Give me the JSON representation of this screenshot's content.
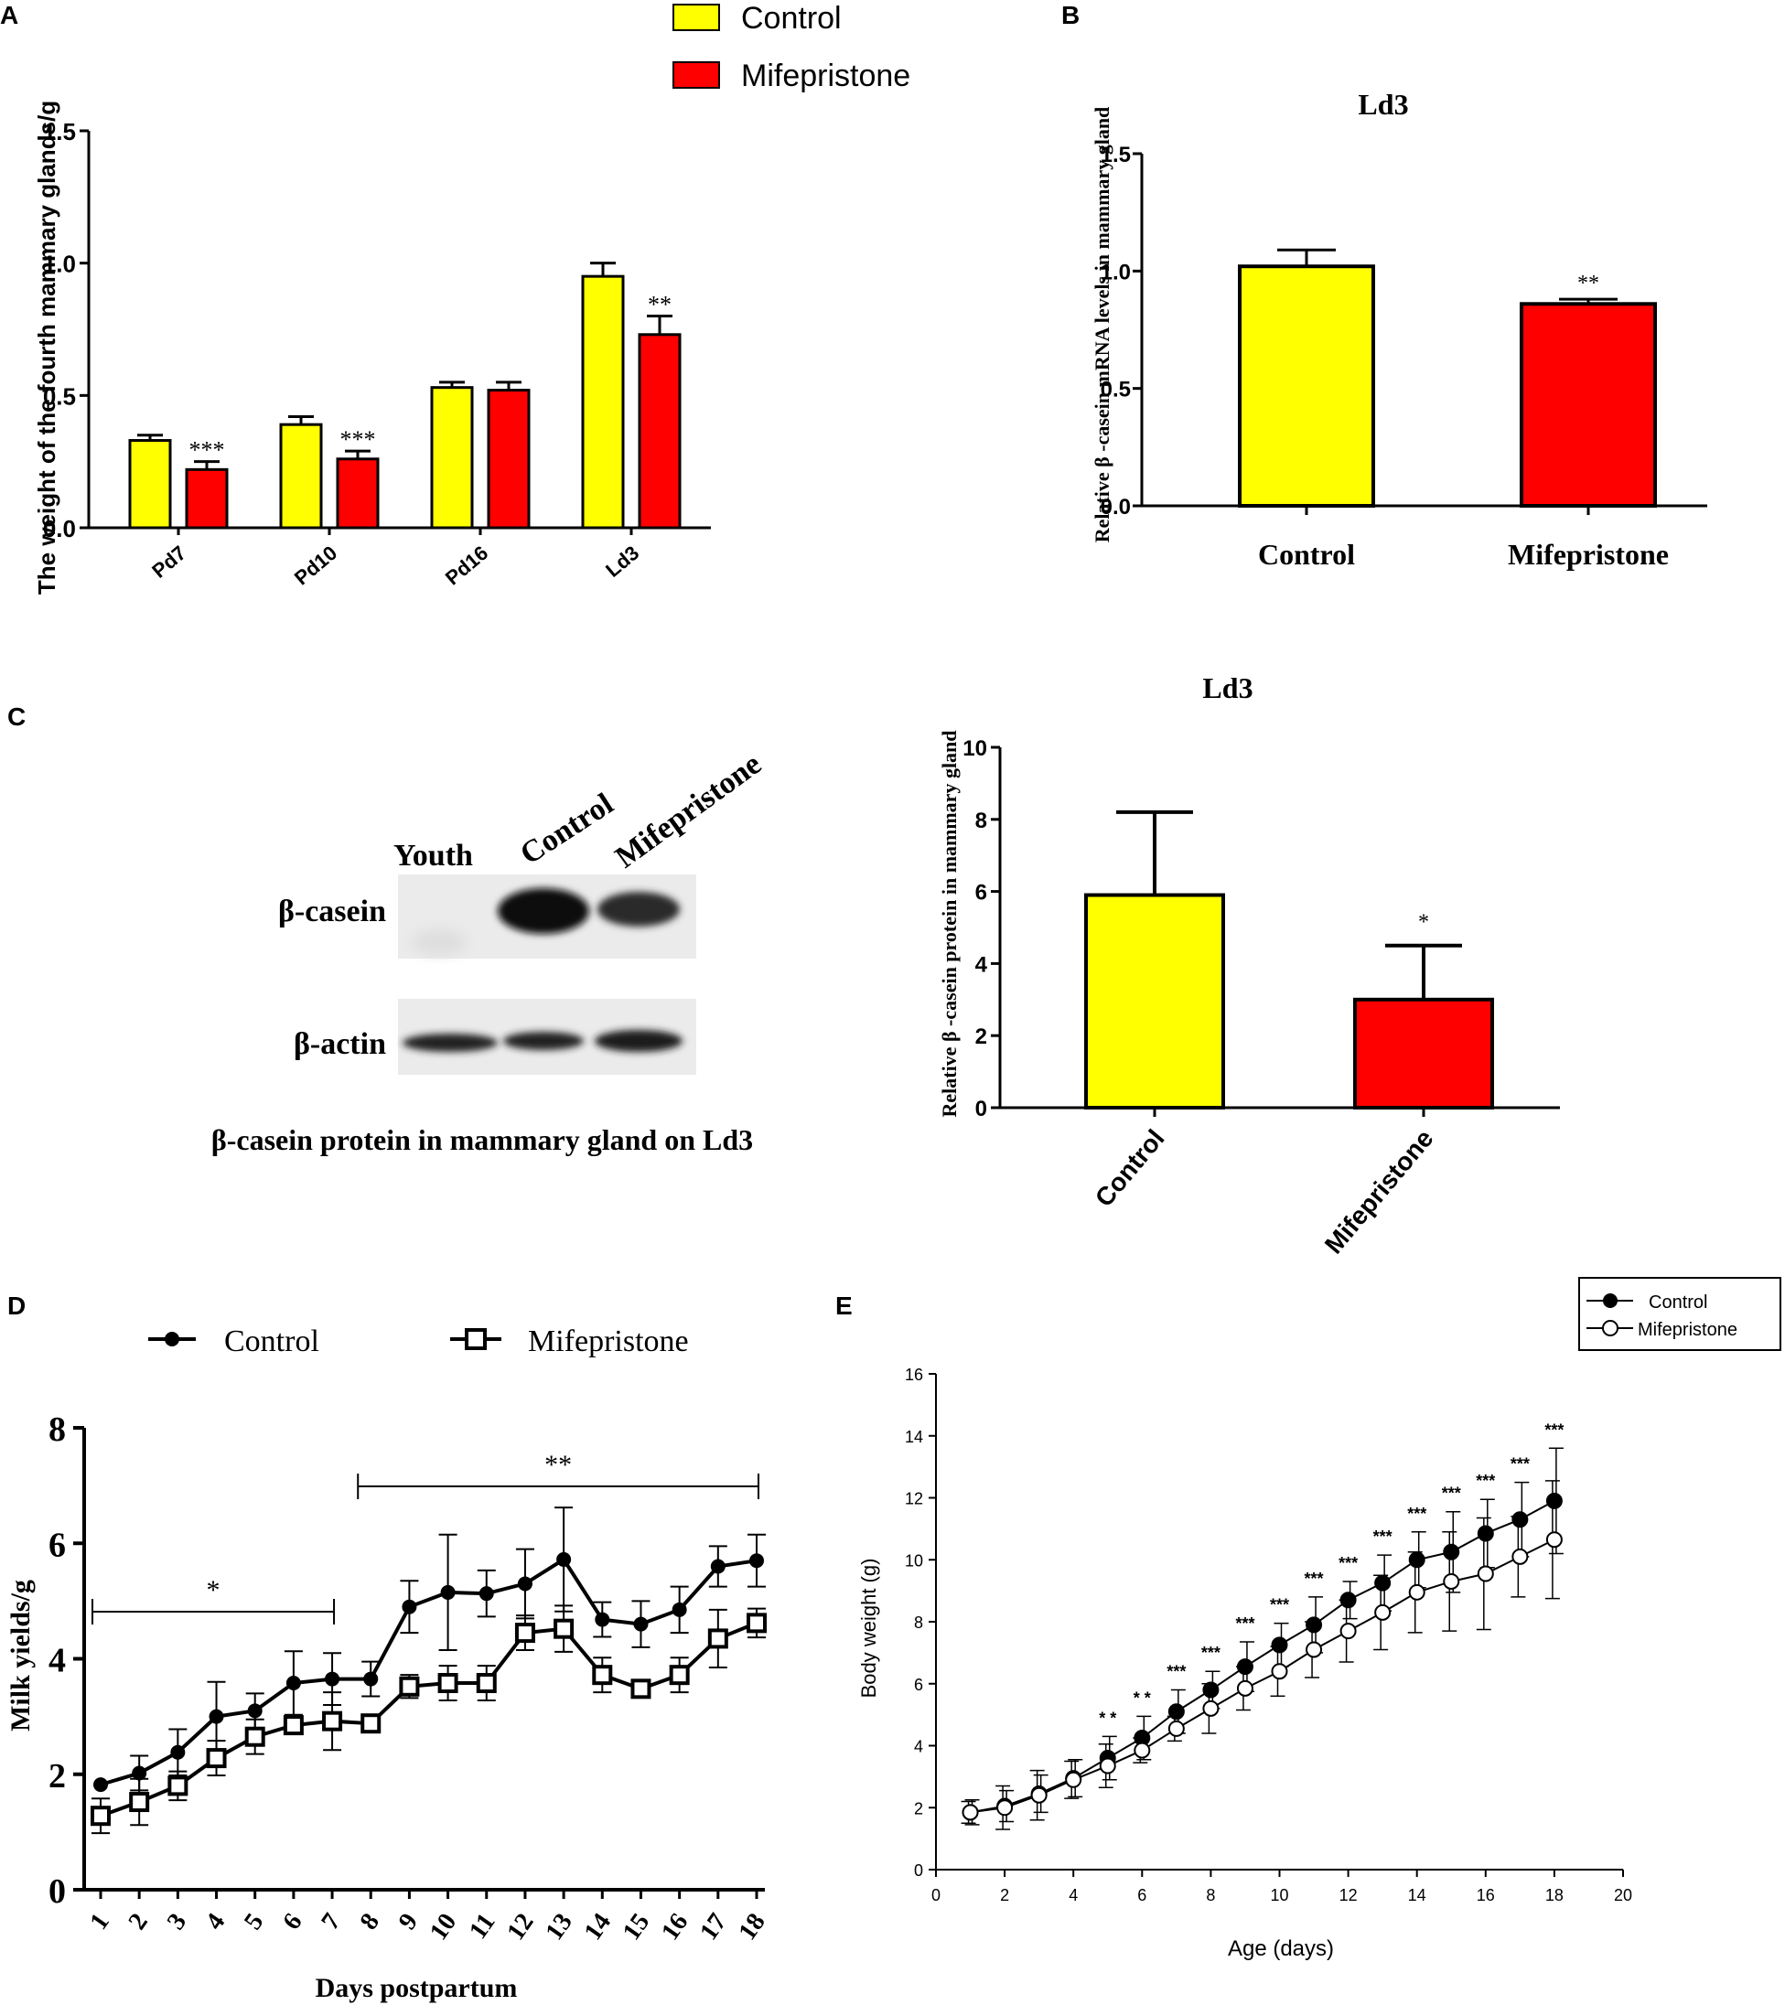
{
  "panel_labels": {
    "a": "A",
    "b": "B",
    "c": "C",
    "d": "D",
    "e": "E"
  },
  "colors": {
    "control": "#ffff00",
    "mifepristone": "#ff0000",
    "axis": "#000000"
  },
  "chart_data": [
    {
      "id": "A",
      "type": "bar",
      "categories": [
        "Pd7",
        "Pd10",
        "Pd16",
        "Ld3"
      ],
      "ylabel": "The weight of the fourth mammary glands/g",
      "ylim": [
        0,
        1.5
      ],
      "yticks": [
        "0.0",
        "0.5",
        "1.0",
        "1.5"
      ],
      "legend": [
        "Control",
        "Mifepristone"
      ],
      "series": [
        {
          "name": "Control",
          "values": [
            0.33,
            0.39,
            0.53,
            0.95
          ],
          "errors": [
            0.02,
            0.03,
            0.02,
            0.05
          ]
        },
        {
          "name": "Mifepristone",
          "values": [
            0.22,
            0.26,
            0.52,
            0.73
          ],
          "errors": [
            0.03,
            0.03,
            0.03,
            0.07
          ]
        }
      ],
      "significance": [
        "***",
        "***",
        "",
        "**"
      ]
    },
    {
      "id": "B",
      "type": "bar",
      "title": "Ld3",
      "categories": [
        "Control",
        "Mifepristone"
      ],
      "values": [
        1.02,
        0.86
      ],
      "errors": [
        0.07,
        0.02
      ],
      "ylabel": "Relative β -casein mRNA levels in mammary gland",
      "ylim": [
        0,
        1.5
      ],
      "yticks": [
        "0.0",
        "0.5",
        "1.0",
        "1.5"
      ],
      "significance": [
        "",
        "**"
      ]
    },
    {
      "id": "C",
      "type": "bar",
      "title": "Ld3",
      "categories": [
        "Control",
        "Mifepristone"
      ],
      "values": [
        5.9,
        3.0
      ],
      "errors": [
        2.3,
        1.5
      ],
      "ylabel": "Relative β -casein  protein in mammary gland",
      "ylim": [
        0,
        10
      ],
      "yticks": [
        "0",
        "2",
        "4",
        "6",
        "8",
        "10"
      ],
      "significance": [
        "",
        "*"
      ]
    },
    {
      "id": "D",
      "type": "line",
      "x": [
        1,
        2,
        3,
        4,
        5,
        6,
        7,
        8,
        9,
        10,
        11,
        12,
        13,
        14,
        15,
        16,
        17,
        18
      ],
      "xlabel": "Days postpartum",
      "ylabel": "Milk yields/g",
      "ylim": [
        0,
        8
      ],
      "yticks": [
        "0",
        "2",
        "4",
        "6",
        "8"
      ],
      "legend": [
        "Control",
        "Mifepristone"
      ],
      "series": [
        {
          "name": "Control",
          "values": [
            1.82,
            2.02,
            2.38,
            3.0,
            3.1,
            3.58,
            3.65,
            3.65,
            4.9,
            5.15,
            5.13,
            5.3,
            5.72,
            4.68,
            4.6,
            4.85,
            5.6,
            5.7
          ],
          "errors": [
            0,
            0.3,
            0.4,
            0.6,
            0.3,
            0.55,
            0.45,
            0.3,
            0.45,
            1.0,
            0.4,
            0.6,
            0.9,
            0.3,
            0.4,
            0.4,
            0.35,
            0.45
          ]
        },
        {
          "name": "Mifepristone",
          "values": [
            1.28,
            1.52,
            1.8,
            2.28,
            2.65,
            2.85,
            2.92,
            2.88,
            3.52,
            3.58,
            3.58,
            4.45,
            4.52,
            3.72,
            3.48,
            3.72,
            4.35,
            4.62
          ],
          "errors": [
            0.3,
            0.4,
            0.25,
            0.3,
            0.3,
            0.15,
            0.5,
            0.1,
            0.2,
            0.3,
            0.3,
            0.3,
            0.4,
            0.3,
            0.15,
            0.3,
            0.5,
            0.25
          ]
        }
      ],
      "annotations": [
        {
          "label": "*",
          "from": 1,
          "to": 7
        },
        {
          "label": "**",
          "from": 8,
          "to": 18
        }
      ]
    },
    {
      "id": "E",
      "type": "line",
      "x": [
        1,
        2,
        3,
        4,
        5,
        6,
        7,
        8,
        9,
        10,
        11,
        12,
        13,
        14,
        15,
        16,
        17,
        18
      ],
      "xlabel": "Age (days)",
      "ylabel": "Body weight (g)",
      "xlim": [
        0,
        20
      ],
      "ylim": [
        0,
        16
      ],
      "xticks": [
        "0",
        "2",
        "4",
        "6",
        "8",
        "10",
        "12",
        "14",
        "16",
        "18",
        "20"
      ],
      "yticks": [
        "0",
        "2",
        "4",
        "6",
        "8",
        "10",
        "12",
        "14",
        "16"
      ],
      "legend": [
        "Control",
        "Mifepristone"
      ],
      "series": [
        {
          "name": "Control",
          "values": [
            1.85,
            2.05,
            2.45,
            2.95,
            3.6,
            4.25,
            5.1,
            5.8,
            6.55,
            7.25,
            7.9,
            8.7,
            9.25,
            10.0,
            10.25,
            10.85,
            11.3,
            11.9
          ],
          "errors": [
            0.4,
            0.5,
            0.6,
            0.6,
            0.7,
            0.7,
            0.7,
            0.6,
            0.8,
            0.7,
            0.9,
            0.6,
            0.9,
            0.9,
            1.3,
            1.1,
            1.2,
            1.7
          ]
        },
        {
          "name": "Mifepristone",
          "values": [
            1.85,
            2.0,
            2.4,
            2.9,
            3.35,
            3.85,
            4.55,
            5.2,
            5.85,
            6.4,
            7.1,
            7.7,
            8.3,
            8.95,
            9.3,
            9.55,
            10.1,
            10.65
          ],
          "errors": [
            0.35,
            0.7,
            0.8,
            0.6,
            0.7,
            0.4,
            0.4,
            0.8,
            0.7,
            0.8,
            0.9,
            1.0,
            1.2,
            1.3,
            1.6,
            1.8,
            1.3,
            1.9
          ]
        }
      ],
      "significance": [
        "",
        "",
        "",
        "",
        "* *",
        "* *",
        "***",
        "***",
        "***",
        "***",
        "***",
        "***",
        "***",
        "***",
        "***",
        "***",
        "***",
        "***"
      ]
    }
  ],
  "blot": {
    "lane_labels": [
      "Youth",
      "Control",
      "Mifepristone"
    ],
    "row_labels": [
      "β-casein",
      "β-actin"
    ],
    "caption": "β-casein protein in mammary gland on Ld3"
  }
}
